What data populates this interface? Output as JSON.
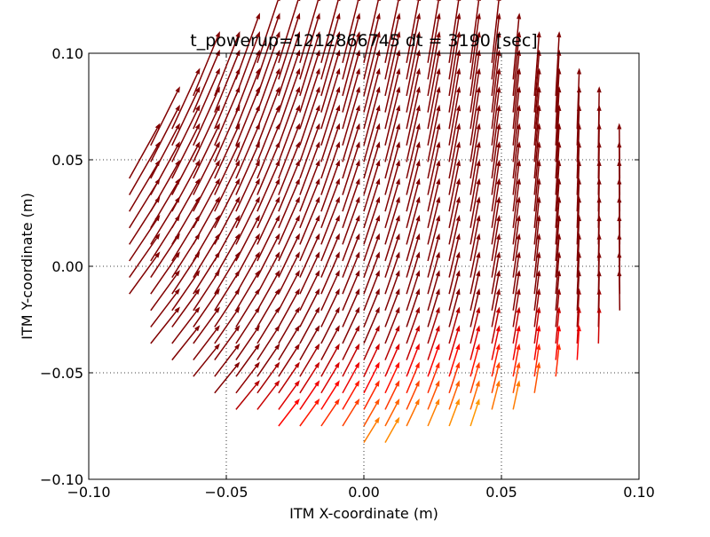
{
  "chart_data": {
    "type": "quiver",
    "title": "t_powerup=1212866745 dt = 3190 [sec]",
    "xlabel": "ITM X-coordinate (m)",
    "ylabel": "ITM Y-coordinate (m)",
    "xlim": [
      -0.1,
      0.1
    ],
    "ylim": [
      -0.1,
      0.1
    ],
    "xticks": [
      -0.1,
      -0.05,
      0.0,
      0.05,
      0.1
    ],
    "yticks": [
      -0.1,
      -0.05,
      0.0,
      0.05,
      0.1
    ],
    "xtick_labels": [
      "−0.10",
      "−0.05",
      "0.00",
      "0.05",
      "0.10"
    ],
    "ytick_labels": [
      "−0.10",
      "−0.05",
      "0.00",
      "0.05",
      "0.10"
    ],
    "grid": true,
    "colormap": "jet",
    "field": {
      "grid_spacing": 0.00775,
      "disk_radius": 0.095,
      "disk_center": [
        0.004,
        0.012
      ],
      "magnitude_range": [
        0.0,
        0.05
      ]
    }
  }
}
